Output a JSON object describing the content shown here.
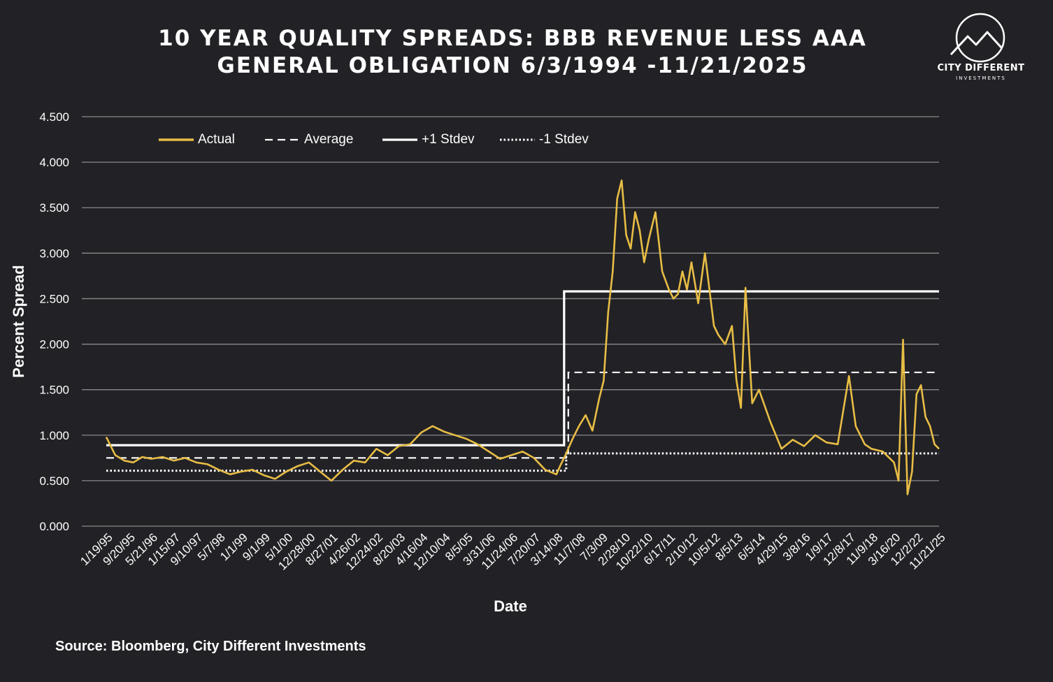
{
  "chart_data": {
    "type": "line",
    "title": "10 YEAR QUALITY SPREADS: BBB REVENUE LESS AAA GENERAL OBLIGATION 6/3/1994 -11/21/2025",
    "xlabel": "Date",
    "ylabel": "Percent Spread",
    "ylim": [
      0,
      4.5
    ],
    "y_ticks": [
      "0.000",
      "0.500",
      "1.000",
      "1.500",
      "2.000",
      "2.500",
      "3.000",
      "3.500",
      "4.000",
      "4.500"
    ],
    "x_ticks": [
      "1/19/95",
      "9/20/95",
      "5/21/96",
      "1/15/97",
      "9/10/97",
      "5/7/98",
      "1/1/99",
      "9/1/99",
      "5/1/00",
      "12/28/00",
      "8/27/01",
      "4/26/02",
      "12/24/02",
      "8/20/03",
      "4/16/04",
      "12/10/04",
      "8/5/05",
      "3/31/06",
      "11/24/06",
      "7/20/07",
      "3/14/08",
      "11/7/08",
      "7/3/09",
      "2/28/10",
      "10/22/10",
      "6/17/11",
      "2/10/12",
      "10/5/12",
      "8/5/13",
      "6/5/14",
      "4/29/15",
      "3/8/16",
      "1/9/17",
      "12/8/17",
      "11/9/18",
      "3/16/20",
      "12/2/22",
      "11/21/25"
    ],
    "grid": true,
    "legend_position": "top-left",
    "colors": {
      "actual": "#e8bd45",
      "reference": "#ffffff",
      "grid": "#8a8a8a",
      "background": "#222226"
    },
    "series": [
      {
        "name": "Actual",
        "style": "solid-gold",
        "x_index": [
          0,
          0.4,
          0.8,
          1.2,
          1.6,
          2,
          2.5,
          3,
          3.5,
          4,
          4.5,
          5,
          5.5,
          6,
          6.5,
          7,
          7.5,
          8,
          8.5,
          9,
          9.5,
          10,
          10.5,
          11,
          11.5,
          12,
          12.5,
          13,
          13.5,
          14,
          14.5,
          15,
          15.5,
          16,
          16.5,
          17,
          17.5,
          18,
          18.5,
          19,
          19.5,
          20,
          20.2,
          20.4,
          20.7,
          21,
          21.3,
          21.6,
          21.9,
          22.1,
          22.3,
          22.5,
          22.7,
          22.9,
          23.1,
          23.3,
          23.5,
          23.7,
          23.9,
          24.1,
          24.4,
          24.7,
          25,
          25.2,
          25.4,
          25.6,
          25.8,
          26,
          26.3,
          26.6,
          27,
          27.2,
          27.5,
          27.8,
          28,
          28.2,
          28.4,
          28.7,
          29,
          29.5,
          30,
          30.5,
          31,
          31.5,
          32,
          32.5,
          33,
          33.3,
          33.7,
          34,
          34.5,
          35,
          35.2,
          35.4,
          35.6,
          35.8,
          36,
          36.2,
          36.4,
          36.6,
          36.8,
          37
        ],
        "values": [
          0.98,
          0.78,
          0.72,
          0.7,
          0.76,
          0.74,
          0.76,
          0.72,
          0.75,
          0.7,
          0.68,
          0.62,
          0.57,
          0.6,
          0.62,
          0.56,
          0.52,
          0.6,
          0.66,
          0.7,
          0.6,
          0.5,
          0.62,
          0.72,
          0.7,
          0.85,
          0.78,
          0.88,
          0.9,
          1.03,
          1.1,
          1.04,
          1.0,
          0.96,
          0.9,
          0.82,
          0.74,
          0.78,
          0.82,
          0.75,
          0.62,
          0.57,
          0.68,
          0.78,
          0.95,
          1.1,
          1.22,
          1.05,
          1.4,
          1.6,
          2.35,
          2.8,
          3.6,
          3.8,
          3.2,
          3.05,
          3.45,
          3.25,
          2.9,
          3.15,
          3.45,
          2.8,
          2.6,
          2.5,
          2.55,
          2.8,
          2.6,
          2.9,
          2.45,
          3.0,
          2.2,
          2.1,
          2.0,
          2.2,
          1.6,
          1.3,
          2.62,
          1.35,
          1.5,
          1.15,
          0.85,
          0.95,
          0.88,
          1.0,
          0.92,
          0.9,
          1.65,
          1.1,
          0.9,
          0.85,
          0.82,
          0.7,
          0.5,
          2.05,
          0.35,
          0.6,
          1.45,
          1.55,
          1.2,
          1.1,
          0.9,
          0.85
        ]
      },
      {
        "name": "Average",
        "style": "dashed",
        "segments": [
          {
            "from": "6/3/94",
            "to": "3/14/08",
            "value": 0.75
          },
          {
            "from": "3/14/08",
            "to": "11/21/25",
            "value": 1.69
          }
        ]
      },
      {
        "name": "+1 Stdev",
        "style": "solid-white",
        "segments": [
          {
            "from": "6/3/94",
            "to": "3/14/08",
            "value": 0.89
          },
          {
            "from": "3/14/08",
            "to": "11/21/25",
            "value": 2.58
          }
        ]
      },
      {
        "name": "-1 Stdev",
        "style": "dotted",
        "segments": [
          {
            "from": "6/3/94",
            "to": "3/14/08",
            "value": 0.61
          },
          {
            "from": "3/14/08",
            "to": "11/21/25",
            "value": 0.8
          }
        ]
      }
    ]
  },
  "brand": {
    "name": "CITY DIFFERENT",
    "sub": "INVESTMENTS"
  },
  "source": "Source: Bloomberg, City Different Investments"
}
